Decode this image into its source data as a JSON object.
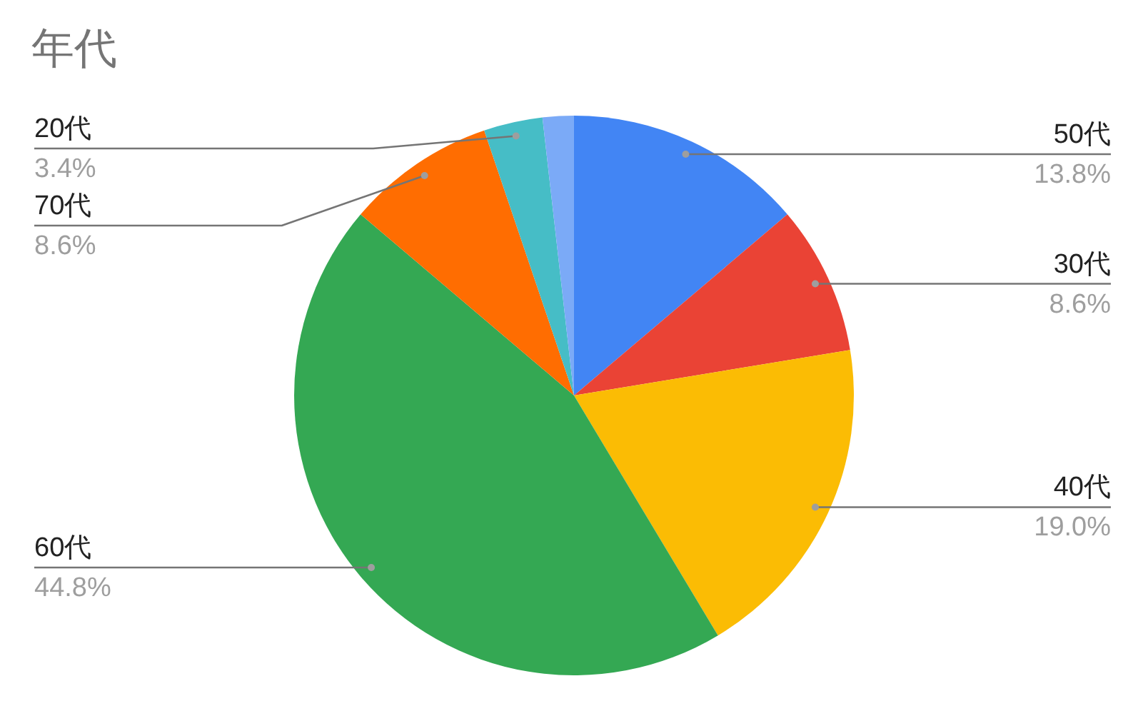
{
  "chart_data": {
    "type": "pie",
    "title": "年代",
    "categories": [
      "50代",
      "30代",
      "40代",
      "60代",
      "70代",
      "20代",
      null
    ],
    "values": [
      13.8,
      8.6,
      19.0,
      44.8,
      8.6,
      3.4,
      1.8
    ],
    "value_labels": [
      "13.8%",
      "8.6%",
      "19.0%",
      "44.8%",
      "8.6%",
      "3.4%",
      null
    ],
    "colors": [
      "#4285f4",
      "#ea4335",
      "#fbbc04",
      "#34a853",
      "#ff6d01",
      "#46bdc6",
      "#7baaf7"
    ]
  }
}
